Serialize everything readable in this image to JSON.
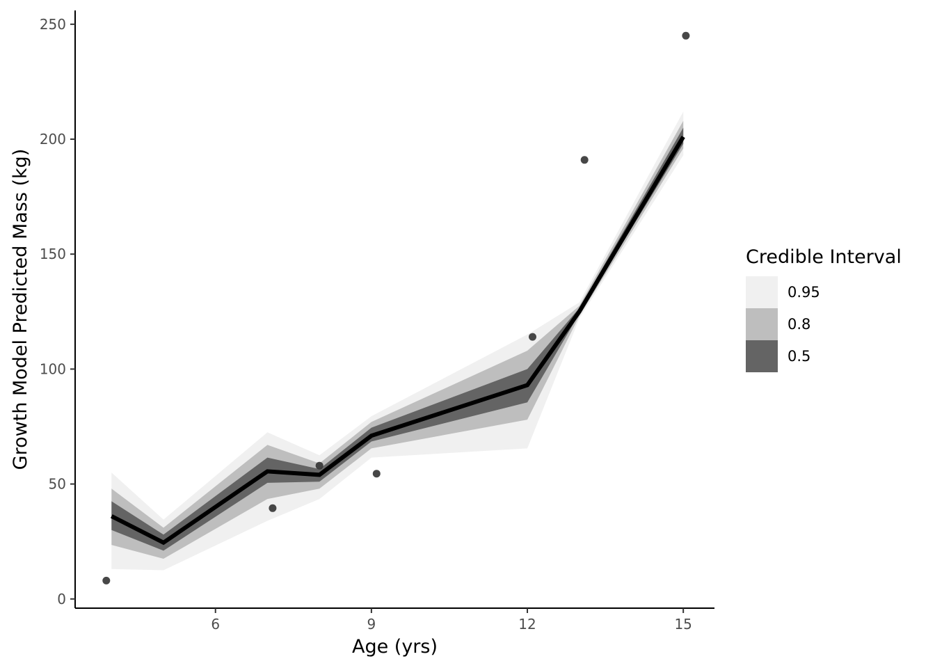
{
  "chart_data": {
    "type": "line",
    "title": "",
    "xlabel": "Age (yrs)",
    "ylabel": "Growth Model Predicted Mass (kg)",
    "xlim": [
      3.3,
      15.6
    ],
    "ylim": [
      -4,
      256
    ],
    "x_ticks": [
      6,
      9,
      12,
      15
    ],
    "y_ticks": [
      0,
      50,
      100,
      150,
      200,
      250
    ],
    "grid": false,
    "legend": {
      "title": "Credible Interval",
      "placement": "right",
      "entries": [
        {
          "label": "0.95",
          "color": "#f0f0f0"
        },
        {
          "label": "0.8",
          "color": "#bebebe"
        },
        {
          "label": "0.5",
          "color": "#646464"
        }
      ]
    },
    "median_line": {
      "color": "#000000",
      "x": [
        4.0,
        5.0,
        7.0,
        8.0,
        9.0,
        12.0,
        13.0,
        15.0
      ],
      "y": [
        36,
        24.5,
        55.5,
        54,
        71,
        93,
        125,
        201
      ]
    },
    "intervals": [
      {
        "level": "0.95",
        "color": "#f0f0f0",
        "x": [
          4.0,
          5.0,
          7.0,
          8.0,
          9.0,
          12.0,
          13.0,
          15.0
        ],
        "lower": [
          13,
          12.5,
          34,
          43.5,
          61.5,
          65.5,
          122,
          193
        ],
        "upper": [
          55,
          34.5,
          72.5,
          62.5,
          79.5,
          115,
          129,
          212
        ]
      },
      {
        "level": "0.8",
        "color": "#bebebe",
        "x": [
          4.0,
          5.0,
          7.0,
          8.0,
          9.0,
          12.0,
          13.0,
          15.0
        ],
        "lower": [
          23.5,
          17.5,
          43.5,
          48,
          65.5,
          78,
          123,
          196
        ],
        "upper": [
          48,
          31,
          67,
          59,
          77,
          108,
          127.5,
          208
        ]
      },
      {
        "level": "0.5",
        "color": "#646464",
        "x": [
          4.0,
          5.0,
          7.0,
          8.0,
          9.0,
          12.0,
          13.0,
          15.0
        ],
        "lower": [
          30,
          21,
          50.5,
          51,
          68.5,
          85.5,
          124,
          198
        ],
        "upper": [
          42.5,
          28,
          61.5,
          56.5,
          74.5,
          100,
          126.5,
          205
        ]
      }
    ],
    "observed_points": {
      "color": "#333333",
      "x": [
        3.9,
        7.1,
        8.0,
        9.1,
        12.1,
        13.1,
        15.05
      ],
      "y": [
        8,
        39.5,
        58,
        54.5,
        114,
        191,
        245
      ]
    }
  }
}
